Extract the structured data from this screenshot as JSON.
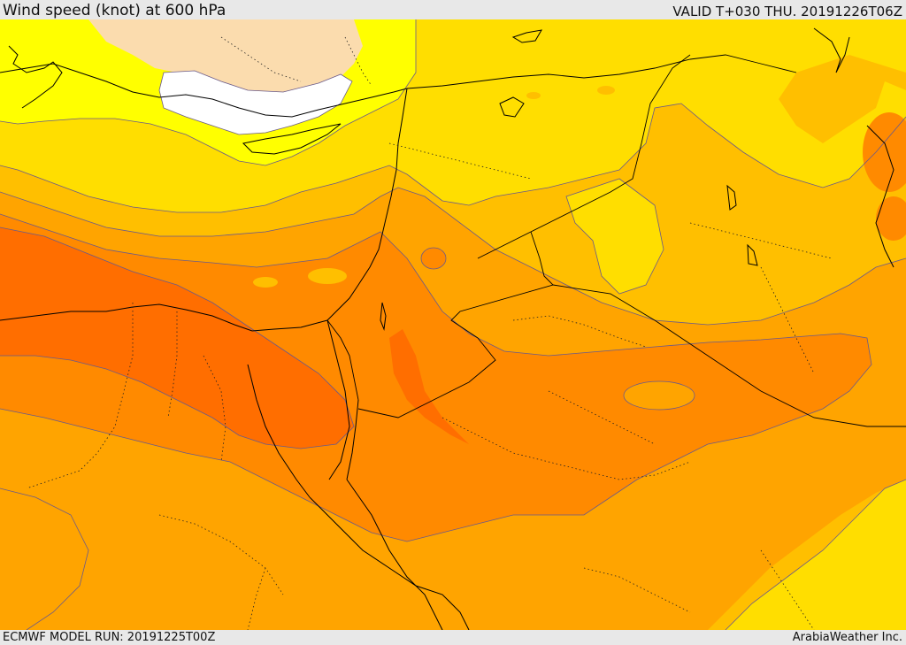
{
  "header": {
    "title": "Wind speed (knot) at 600 hPa",
    "valid_time": "VALID T+030 THU. 20191226T06Z"
  },
  "footer": {
    "model_run": "ECMWF MODEL RUN: 20191225T00Z",
    "credit": "ArabiaWeather Inc."
  },
  "map": {
    "variable": "wind speed",
    "level_hpa": 600,
    "units": "knot",
    "palette": {
      "white": "#ffffff",
      "pale_tan": "#fbdcae",
      "yellow": "#ffff00",
      "gold": "#ffde00",
      "amber": "#ffbf00",
      "orange_light": "#ffa400",
      "orange": "#ff8a00",
      "orange_dark": "#ff6e00",
      "red_orange": "#ff5a00"
    },
    "coastline_color": "#000000",
    "contour_color": "#6a5a8a",
    "border_style": "dotted",
    "legend_shown": false
  }
}
